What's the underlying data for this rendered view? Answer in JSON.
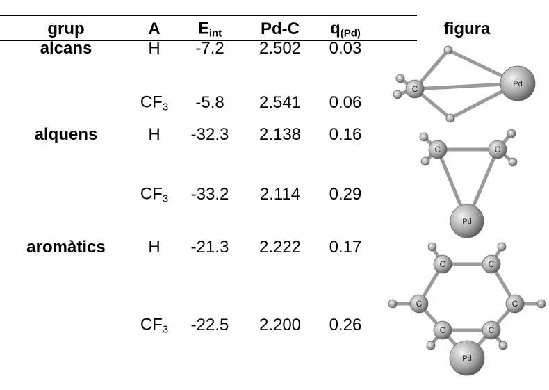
{
  "table": {
    "header": [
      {
        "text": "grup"
      },
      {
        "text": "A"
      },
      {
        "text": "E",
        "sub": "int"
      },
      {
        "text": "Pd-C"
      },
      {
        "text": "q",
        "sub": "(Pd)"
      },
      {
        "text": "figura"
      }
    ],
    "rows": [
      {
        "group": "alcans",
        "A": {
          "text": "H"
        },
        "E": "-7.2",
        "PdC": "2.502",
        "q": "0.03"
      },
      {
        "A": {
          "text": "CF",
          "sub": "3"
        },
        "E": "-5.8",
        "PdC": "2.541",
        "q": "0.06"
      },
      {
        "group": "alquens",
        "A": {
          "text": "H"
        },
        "E": "-32.3",
        "PdC": "2.138",
        "q": "0.16"
      },
      {
        "A": {
          "text": "CF",
          "sub": "3"
        },
        "E": "-33.2",
        "PdC": "2.114",
        "q": "0.29"
      },
      {
        "group": "aromàtics",
        "A": {
          "text": "H"
        },
        "E": "-21.3",
        "PdC": "2.222",
        "q": "0.17"
      },
      {
        "A": {
          "text": "CF",
          "sub": "3"
        },
        "E": "-22.5",
        "PdC": "2.200",
        "q": "0.26"
      }
    ]
  },
  "figures": [
    {
      "atoms": [
        "C",
        "Pd"
      ]
    },
    {
      "atoms": [
        "C",
        "C",
        "Pd"
      ]
    },
    {
      "atoms": [
        "C",
        "C",
        "C",
        "C",
        "C",
        "C",
        "Pd"
      ]
    }
  ]
}
